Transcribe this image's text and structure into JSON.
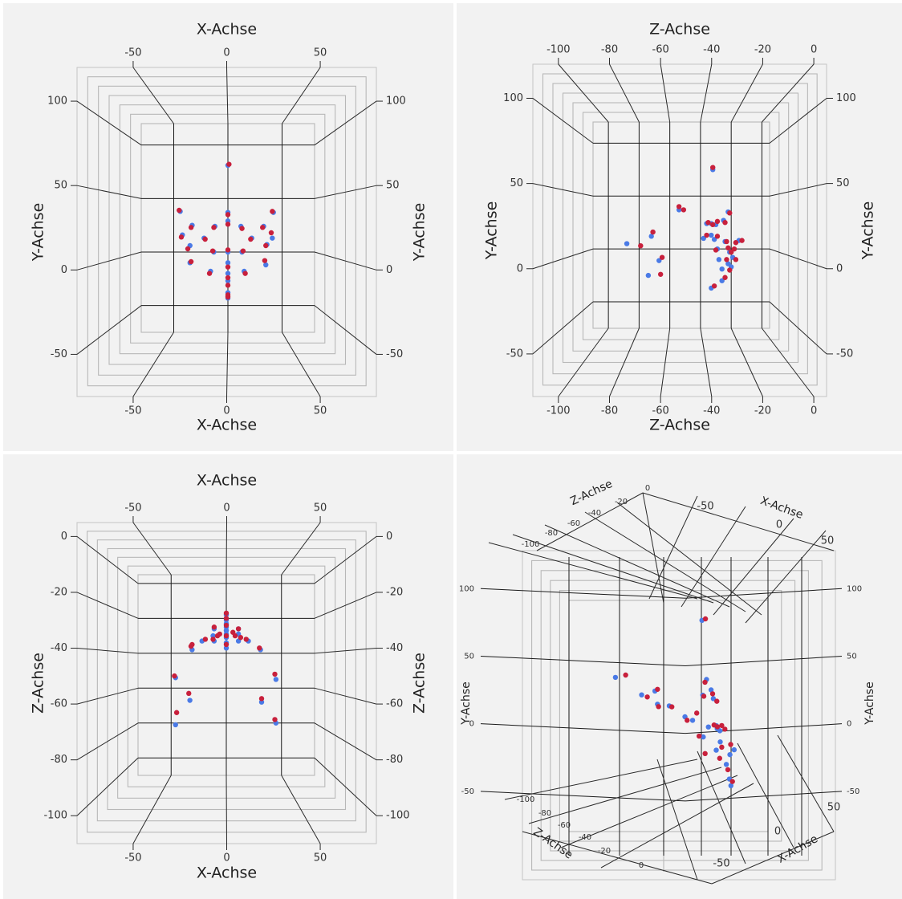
{
  "colors": {
    "series_blue": "#4a7ae6",
    "series_red": "#c8203c",
    "panel_bg": "#f2f2f2"
  },
  "chart_data": [
    {
      "type": "scatter",
      "view": "x-y",
      "xlabel": "X-Achse",
      "ylabel": "Y-Achse",
      "x_ticks": [
        "-50",
        "0",
        "50"
      ],
      "y_ticks": [
        "100",
        "50",
        "0",
        "-50"
      ],
      "xlim": [
        -80,
        80
      ],
      "ylim": [
        -75,
        120
      ],
      "series": [
        {
          "color": "blue",
          "points": [
            [
              0,
              81
            ],
            [
              -44,
              38
            ],
            [
              42,
              37
            ],
            [
              0,
              37
            ],
            [
              0,
              29
            ],
            [
              -33,
              25
            ],
            [
              33,
              24
            ],
            [
              -12,
              24
            ],
            [
              12,
              24
            ],
            [
              -42,
              16
            ],
            [
              41,
              13
            ],
            [
              -22,
              13
            ],
            [
              22,
              13
            ],
            [
              -35,
              6
            ],
            [
              36,
              7
            ],
            [
              -13,
              0
            ],
            [
              13,
              0
            ],
            [
              0,
              0
            ],
            [
              -35,
              -10
            ],
            [
              35,
              -12
            ],
            [
              0,
              -10
            ],
            [
              -16,
              -18
            ],
            [
              15,
              -18
            ],
            [
              0,
              -20
            ],
            [
              0,
              -27
            ],
            [
              0,
              -38
            ],
            [
              0,
              -43
            ]
          ]
        },
        {
          "color": "red",
          "points": [
            [
              1,
              82
            ],
            [
              -45,
              39
            ],
            [
              41,
              38
            ],
            [
              0,
              35
            ],
            [
              0,
              26
            ],
            [
              -34,
              23
            ],
            [
              32,
              23
            ],
            [
              -13,
              23
            ],
            [
              13,
              22
            ],
            [
              -43,
              14
            ],
            [
              40,
              18
            ],
            [
              -21,
              12
            ],
            [
              21,
              12
            ],
            [
              -37,
              3
            ],
            [
              35,
              6
            ],
            [
              -14,
              1
            ],
            [
              14,
              1
            ],
            [
              0,
              2
            ],
            [
              -34,
              -9
            ],
            [
              34,
              -8
            ],
            [
              0,
              -14
            ],
            [
              -17,
              -20
            ],
            [
              16,
              -20
            ],
            [
              0,
              -24
            ],
            [
              0,
              -31
            ],
            [
              0,
              -40
            ],
            [
              0,
              -42
            ]
          ]
        }
      ]
    },
    {
      "type": "scatter",
      "view": "z-y",
      "xlabel": "Z-Achse",
      "ylabel": "Y-Achse",
      "x_ticks": [
        "-100",
        "-80",
        "-60",
        "-40",
        "-20",
        "0"
      ],
      "y_ticks": [
        "100",
        "50",
        "0",
        "-50"
      ],
      "xlim": [
        -110,
        5
      ],
      "ylim": [
        -75,
        120
      ],
      "series": [
        {
          "color": "blue",
          "points": [
            [
              -32,
              75
            ],
            [
              -54,
              37
            ],
            [
              -22,
              35
            ],
            [
              -36,
              24
            ],
            [
              -33,
              24
            ],
            [
              -30,
              23
            ],
            [
              -25,
              27
            ],
            [
              -72,
              12
            ],
            [
              -38,
              10
            ],
            [
              -88,
              5
            ],
            [
              -33,
              13
            ],
            [
              -31,
              9
            ],
            [
              -24,
              7
            ],
            [
              -15,
              8
            ],
            [
              -29,
              0
            ],
            [
              -21,
              -3
            ],
            [
              -19,
              -8
            ],
            [
              -28,
              -10
            ],
            [
              -22,
              -14
            ],
            [
              -20,
              -17
            ],
            [
              -67,
              -11
            ],
            [
              -26,
              -19
            ],
            [
              -74,
              -25
            ],
            [
              -26,
              -30
            ],
            [
              -33,
              -37
            ]
          ]
        },
        {
          "color": "red",
          "points": [
            [
              -32,
              77
            ],
            [
              -54,
              40
            ],
            [
              -51,
              37
            ],
            [
              -21,
              34
            ],
            [
              -35,
              25
            ],
            [
              -32,
              23
            ],
            [
              -29,
              26
            ],
            [
              -24,
              25
            ],
            [
              -71,
              16
            ],
            [
              -36,
              13
            ],
            [
              -79,
              3
            ],
            [
              -29,
              12
            ],
            [
              -23,
              7
            ],
            [
              -17,
              6
            ],
            [
              -13,
              8
            ],
            [
              -30,
              -1
            ],
            [
              -22,
              1
            ],
            [
              -18,
              0
            ],
            [
              -20,
              -3
            ],
            [
              -23,
              -10
            ],
            [
              -17,
              -10
            ],
            [
              -21,
              -20
            ],
            [
              -65,
              -8
            ],
            [
              -66,
              -24
            ],
            [
              -24,
              -27
            ],
            [
              -31,
              -35
            ]
          ]
        }
      ]
    },
    {
      "type": "scatter",
      "view": "x-z",
      "xlabel": "X-Achse",
      "ylabel": "Z-Achse",
      "x_ticks": [
        "-50",
        "0",
        "50"
      ],
      "y_ticks": [
        "-100",
        "-80",
        "-60",
        "-40",
        "-20",
        "0"
      ],
      "xlim": [
        -80,
        80
      ],
      "ylim": [
        -110,
        5
      ],
      "series": [
        {
          "color": "blue",
          "points": [
            [
              -46,
              -81
            ],
            [
              45,
              -80
            ],
            [
              -33,
              -67
            ],
            [
              32,
              -68
            ],
            [
              45,
              -55
            ],
            [
              -46,
              -54
            ],
            [
              -31,
              -38
            ],
            [
              31,
              -38
            ],
            [
              -22,
              -33
            ],
            [
              -11,
              -33
            ],
            [
              11,
              -33
            ],
            [
              20,
              -33
            ],
            [
              0,
              -37
            ],
            [
              0,
              -34
            ],
            [
              0,
              -31
            ],
            [
              0,
              -29
            ],
            [
              -12,
              -30
            ],
            [
              11,
              -29
            ],
            [
              -11,
              -26
            ],
            [
              11,
              -26
            ],
            [
              0,
              -27
            ],
            [
              0,
              -25
            ],
            [
              0,
              -23
            ],
            [
              0,
              -21
            ],
            [
              0,
              -18
            ]
          ]
        },
        {
          "color": "red",
          "points": [
            [
              -45,
              -74
            ],
            [
              44,
              -78
            ],
            [
              -34,
              -63
            ],
            [
              32,
              -66
            ],
            [
              44,
              -52
            ],
            [
              -47,
              -53
            ],
            [
              -32,
              -36
            ],
            [
              30,
              -37
            ],
            [
              -19,
              -32
            ],
            [
              -12,
              -32
            ],
            [
              13,
              -31
            ],
            [
              18,
              -32
            ],
            [
              0,
              -35
            ],
            [
              -31,
              -35
            ],
            [
              0,
              -30
            ],
            [
              -6,
              -29
            ],
            [
              6,
              -28
            ],
            [
              -11,
              -25
            ],
            [
              11,
              -26
            ],
            [
              0,
              -24
            ],
            [
              -8,
              -30
            ],
            [
              8,
              -30
            ],
            [
              0,
              -20
            ],
            [
              0,
              -17
            ]
          ]
        }
      ]
    },
    {
      "type": "scatter",
      "view": "3d",
      "xlabel": "X-Achse",
      "ylabel": "Y-Achse",
      "zlabel": "Z-Achse",
      "x_ticks": [
        "-50",
        "0",
        "50"
      ],
      "y_ticks": [
        "100",
        "50",
        "0",
        "-50"
      ],
      "z_ticks": [
        "-100",
        "-80",
        "-60",
        "-40",
        "-20",
        "0"
      ],
      "series": [
        {
          "color": "blue",
          "points": [
            [
              -44,
              38,
              -81
            ],
            [
              42,
              37,
              -80
            ],
            [
              -33,
              25,
              -67
            ],
            [
              33,
              24,
              -68
            ],
            [
              -12,
              24,
              -33
            ],
            [
              12,
              24,
              -33
            ],
            [
              -42,
              16,
              -54
            ],
            [
              41,
              13,
              -55
            ],
            [
              0,
              81,
              -37
            ],
            [
              -35,
              6,
              -38
            ],
            [
              36,
              7,
              -38
            ],
            [
              0,
              37,
              -34
            ],
            [
              0,
              29,
              -31
            ],
            [
              -13,
              0,
              -29
            ],
            [
              13,
              0,
              -29
            ],
            [
              0,
              0,
              -27
            ],
            [
              -35,
              -10,
              -26
            ],
            [
              35,
              -12,
              -26
            ],
            [
              0,
              -10,
              -25
            ],
            [
              -16,
              -18,
              -23
            ],
            [
              15,
              -18,
              -23
            ],
            [
              0,
              -27,
              -21
            ],
            [
              0,
              -38,
              -19
            ],
            [
              0,
              -43,
              -18
            ]
          ]
        },
        {
          "color": "red",
          "points": [
            [
              -45,
              39,
              -74
            ],
            [
              41,
              38,
              -78
            ],
            [
              -34,
              23,
              -63
            ],
            [
              32,
              23,
              -66
            ],
            [
              -13,
              23,
              -32
            ],
            [
              13,
              22,
              -31
            ],
            [
              -43,
              14,
              -53
            ],
            [
              40,
              18,
              -52
            ],
            [
              1,
              82,
              -35
            ],
            [
              -37,
              3,
              -36
            ],
            [
              35,
              6,
              -37
            ],
            [
              0,
              35,
              -35
            ],
            [
              0,
              26,
              -30
            ],
            [
              -14,
              1,
              -25
            ],
            [
              14,
              1,
              -26
            ],
            [
              0,
              2,
              -24
            ],
            [
              -34,
              -9,
              -29
            ],
            [
              34,
              -8,
              -28
            ],
            [
              0,
              -14,
              -24
            ],
            [
              -17,
              -20,
              -30
            ],
            [
              16,
              -20,
              -30
            ],
            [
              0,
              -31,
              -20
            ],
            [
              0,
              -40,
              -17
            ]
          ]
        }
      ]
    }
  ]
}
